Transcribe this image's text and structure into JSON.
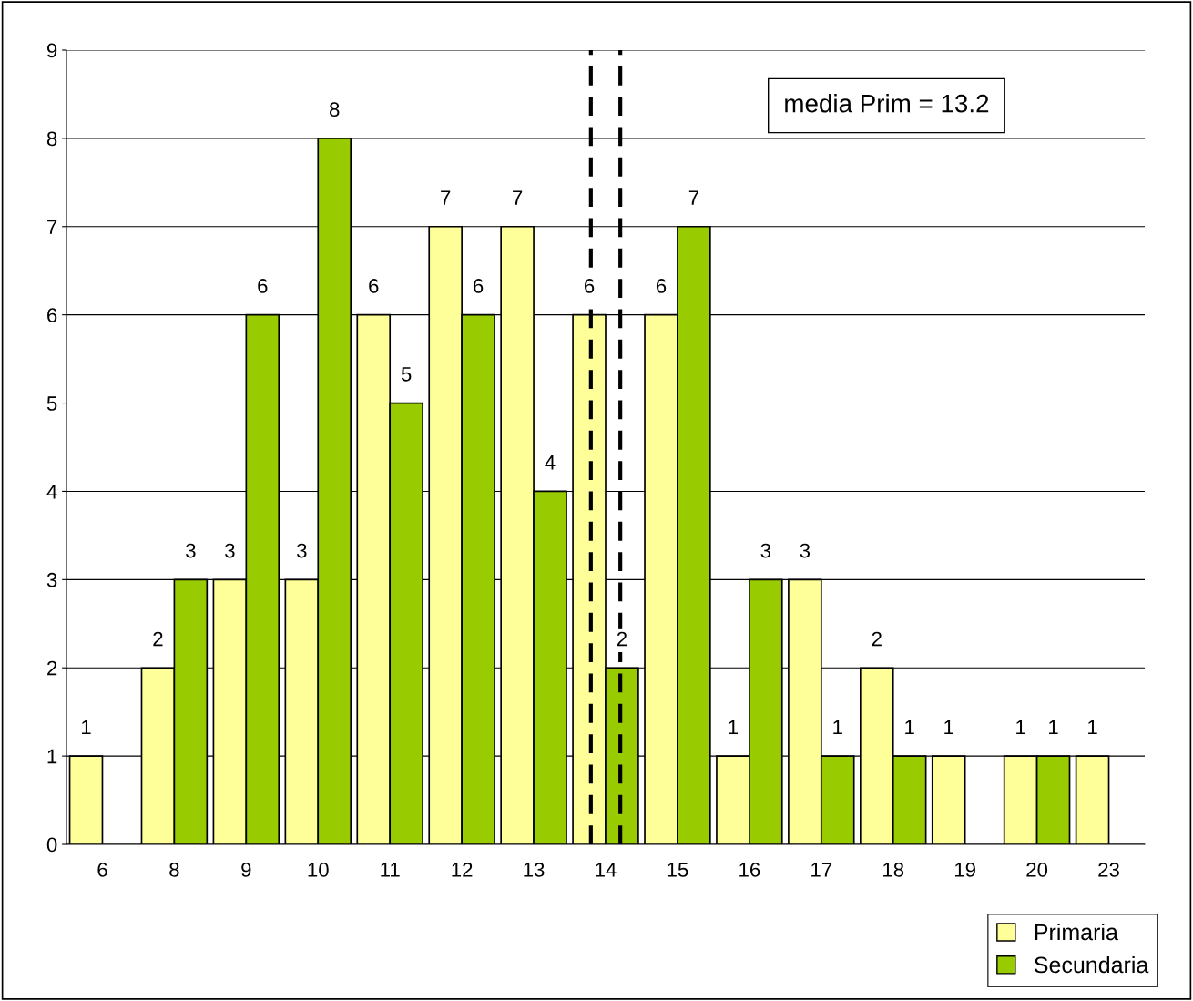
{
  "chart_data": {
    "type": "bar",
    "categories": [
      "6",
      "8",
      "9",
      "10",
      "11",
      "12",
      "13",
      "14",
      "15",
      "16",
      "17",
      "18",
      "19",
      "20",
      "23"
    ],
    "series": [
      {
        "name": "Primaria",
        "color": "#ffff99",
        "values": [
          1,
          2,
          3,
          3,
          6,
          7,
          7,
          6,
          6,
          1,
          3,
          2,
          1,
          1,
          1
        ]
      },
      {
        "name": "Secundaria",
        "color": "#99cc00",
        "values": [
          null,
          3,
          6,
          8,
          5,
          6,
          4,
          2,
          7,
          3,
          1,
          1,
          null,
          1,
          null
        ]
      }
    ],
    "ylim": [
      0,
      9
    ],
    "yticks": [
      0,
      1,
      2,
      3,
      4,
      5,
      6,
      7,
      8,
      9
    ],
    "grid": "y",
    "legend": "bottom right",
    "data_labels": true,
    "ref_lines": [
      {
        "axis": "x",
        "value": "14",
        "color": "#000000",
        "line_style": "dashed"
      },
      {
        "axis": "x",
        "value": "14",
        "color": "#000000",
        "line_style": "dashed"
      }
    ],
    "annotations": [
      "media Prim = 13.2"
    ]
  }
}
